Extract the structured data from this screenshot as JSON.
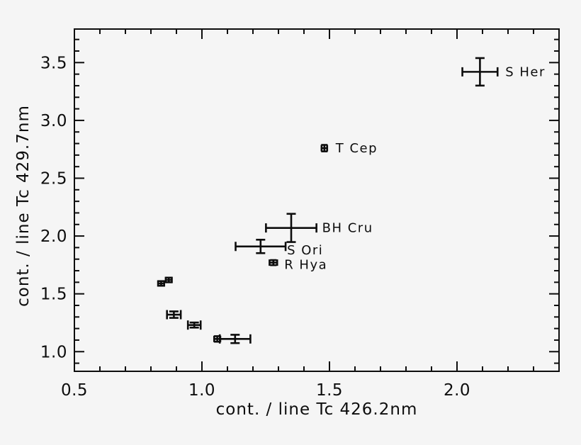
{
  "page": {
    "background_color": "#f5f5f5",
    "axis_color": "#0d0d0d",
    "marker_color": "#0d0d0d"
  },
  "chart_data": {
    "type": "scatter",
    "subtype": "errorbar-scatter",
    "title": "",
    "xlabel": "cont. / line Tc 426.2nm",
    "ylabel": "cont. / line Tc 429.7nm",
    "xlim": [
      0.5,
      2.4
    ],
    "ylim": [
      0.83,
      3.79
    ],
    "x_major_ticks": [
      0.5,
      1.0,
      1.5,
      2.0
    ],
    "x_major_tick_labels": [
      "0.5",
      "1.0",
      "1.5",
      "2.0"
    ],
    "y_major_ticks": [
      1.0,
      1.5,
      2.0,
      2.5,
      3.0,
      3.5
    ],
    "y_major_tick_labels": [
      "1.0",
      "1.5",
      "2.0",
      "2.5",
      "3.0",
      "3.5"
    ],
    "minor_tick_step": 0.1,
    "ticks_style": "inward-all-four-sides",
    "grid": false,
    "legend": "none",
    "marker_style": "error-bars-only",
    "points": [
      {
        "label": "",
        "x": 0.84,
        "y": 1.59,
        "xerr": 0.012,
        "yerr": 0.02,
        "label_gap": 0,
        "label_dy": 0
      },
      {
        "label": "",
        "x": 0.87,
        "y": 1.62,
        "xerr": 0.012,
        "yerr": 0.02,
        "label_gap": 0,
        "label_dy": 0
      },
      {
        "label": "",
        "x": 0.89,
        "y": 1.32,
        "xerr": 0.027,
        "yerr": 0.028,
        "label_gap": 0,
        "label_dy": 0
      },
      {
        "label": "",
        "x": 0.97,
        "y": 1.23,
        "xerr": 0.025,
        "yerr": 0.022,
        "label_gap": 0,
        "label_dy": 0
      },
      {
        "label": "",
        "x": 1.06,
        "y": 1.11,
        "xerr": 0.012,
        "yerr": 0.024,
        "label_gap": 0,
        "label_dy": 0
      },
      {
        "label": "",
        "x": 1.13,
        "y": 1.11,
        "xerr": 0.06,
        "yerr": 0.036,
        "label_gap": 0,
        "label_dy": 0
      },
      {
        "label": "S Ori",
        "x": 1.23,
        "y": 1.91,
        "xerr": 0.098,
        "yerr": 0.058,
        "label_gap": 2,
        "label_dy": 5
      },
      {
        "label": "R Hya",
        "x": 1.28,
        "y": 1.77,
        "xerr": 0.015,
        "yerr": 0.022,
        "label_gap": 10,
        "label_dy": 3
      },
      {
        "label": "BH Cru",
        "x": 1.35,
        "y": 2.07,
        "xerr": 0.099,
        "yerr": 0.122,
        "label_gap": 8,
        "label_dy": 0
      },
      {
        "label": "T Cep",
        "x": 1.48,
        "y": 2.76,
        "xerr": 0.011,
        "yerr": 0.028,
        "label_gap": 12,
        "label_dy": 0
      },
      {
        "label": "S Her",
        "x": 2.09,
        "y": 3.42,
        "xerr": 0.069,
        "yerr": 0.119,
        "label_gap": 11,
        "label_dy": 0
      }
    ]
  }
}
